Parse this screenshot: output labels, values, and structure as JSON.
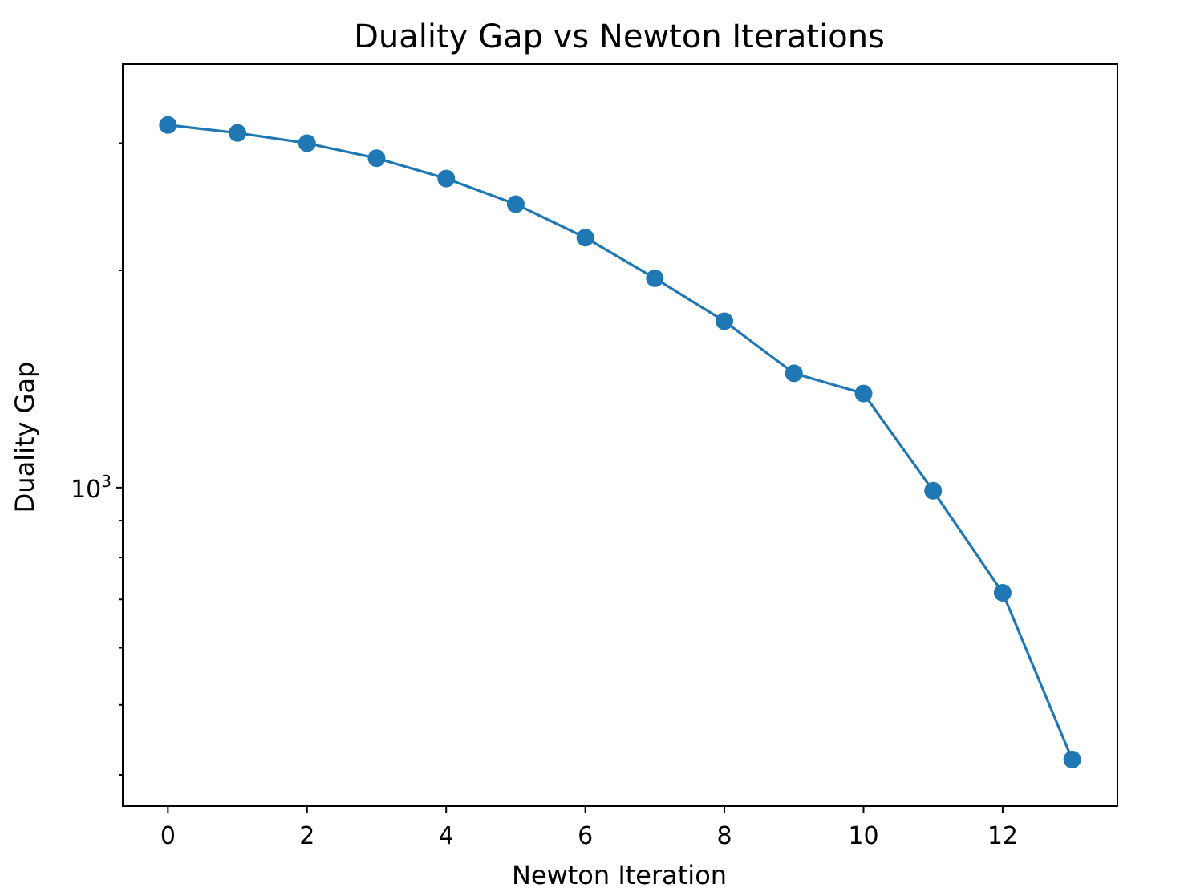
{
  "chart_data": {
    "type": "line",
    "title": "Duality Gap vs Newton Iterations",
    "xlabel": "Newton Iteration",
    "ylabel": "Duality Gap",
    "yscale": "log",
    "grid": false,
    "xlim": [
      -0.65,
      13.65
    ],
    "ylim": [
      362,
      3860
    ],
    "xticks": [
      0,
      2,
      4,
      6,
      8,
      10,
      12
    ],
    "yticks_major": [
      {
        "value": 1000,
        "base": "10",
        "exp": "3"
      }
    ],
    "yticks_minor": [
      400,
      500,
      600,
      700,
      800,
      900,
      2000,
      3000
    ],
    "series": [
      {
        "color": "#1f77b4",
        "marker": "circle",
        "x": [
          0,
          1,
          2,
          3,
          4,
          5,
          6,
          7,
          8,
          9,
          10,
          11,
          12,
          13
        ],
        "y": [
          3180,
          3100,
          3000,
          2860,
          2680,
          2470,
          2220,
          1950,
          1700,
          1440,
          1350,
          990,
          715,
          420
        ]
      }
    ]
  }
}
